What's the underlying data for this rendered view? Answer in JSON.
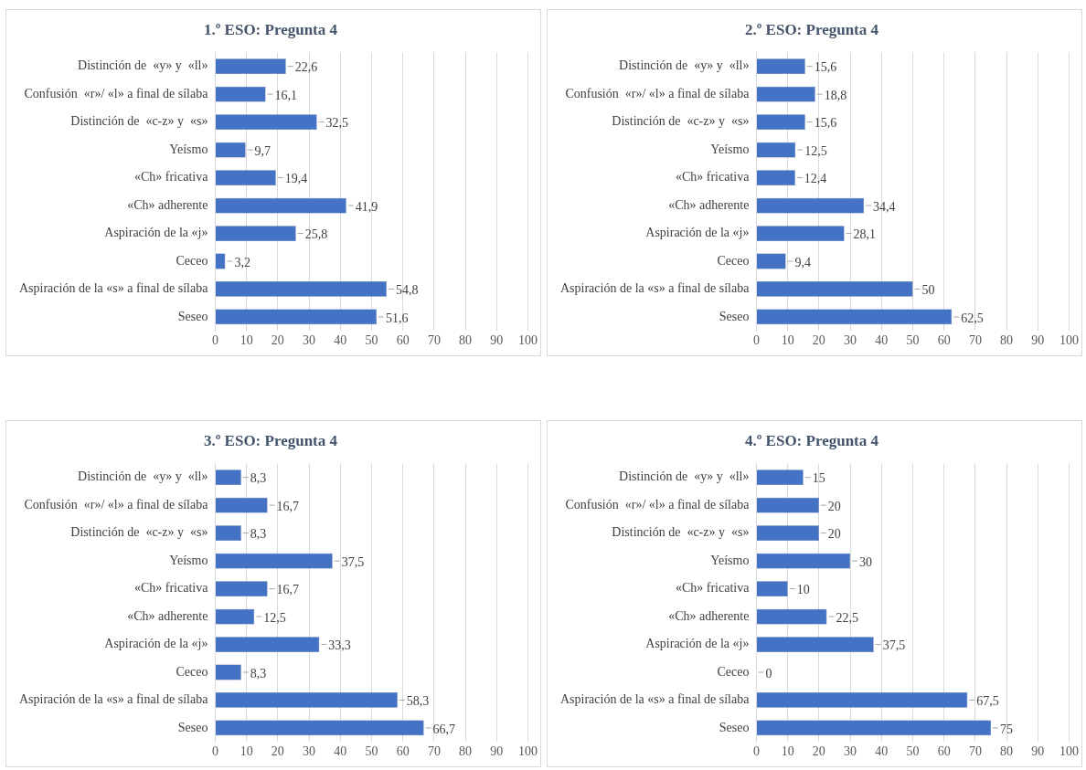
{
  "chart_data": [
    {
      "type": "bar",
      "orientation": "horizontal",
      "title": "1.º ESO: Pregunta 4",
      "categories": [
        "Distinción de  «y» y  «ll»",
        "Confusión  «r»/ «l» a final de sílaba",
        "Distinción de  «c-z» y  «s»",
        "Yeísmo",
        "«Ch» fricativa",
        "«Ch» adherente",
        "Aspiración de la «j»",
        "Ceceo",
        "Aspiración de la «s» a final de sílaba",
        "Seseo"
      ],
      "values": [
        22.6,
        16.1,
        32.5,
        9.7,
        19.4,
        41.9,
        25.8,
        3.2,
        54.8,
        51.6
      ],
      "value_labels": [
        "22,6",
        "16,1",
        "32,5",
        "9,7",
        "19,4",
        "41,9",
        "25,8",
        "3,2",
        "54,8",
        "51,6"
      ],
      "color": "#4472c4",
      "xlim": [
        0,
        100
      ],
      "xticks": [
        0,
        10,
        20,
        30,
        40,
        50,
        60,
        70,
        80,
        90,
        100
      ],
      "grid": "x",
      "legend": false
    },
    {
      "type": "bar",
      "orientation": "horizontal",
      "title": "2.º ESO: Pregunta 4",
      "categories": [
        "Distinción de  «y» y  «ll»",
        "Confusión  «r»/ «l» a final de sílaba",
        "Distinción de  «c-z» y  «s»",
        "Yeísmo",
        "«Ch» fricativa",
        "«Ch» adherente",
        "Aspiración de la «j»",
        "Ceceo",
        "Aspiración de la «s» a final de sílaba",
        "Seseo"
      ],
      "values": [
        15.6,
        18.8,
        15.6,
        12.5,
        12.4,
        34.4,
        28.1,
        9.4,
        50,
        62.5
      ],
      "value_labels": [
        "15,6",
        "18,8",
        "15,6",
        "12,5",
        "12,4",
        "34,4",
        "28,1",
        "9,4",
        "50",
        "62,5"
      ],
      "color": "#4472c4",
      "xlim": [
        0,
        100
      ],
      "xticks": [
        0,
        10,
        20,
        30,
        40,
        50,
        60,
        70,
        80,
        90,
        100
      ],
      "grid": "x",
      "legend": false
    },
    {
      "type": "bar",
      "orientation": "horizontal",
      "title": "3.º ESO: Pregunta 4",
      "categories": [
        "Distinción de  «y» y  «ll»",
        "Confusión  «r»/ «l» a final de sílaba",
        "Distinción de  «c-z» y  «s»",
        "Yeísmo",
        "«Ch» fricativa",
        "«Ch» adherente",
        "Aspiración de la «j»",
        "Ceceo",
        "Aspiración de la «s» a final de sílaba",
        "Seseo"
      ],
      "values": [
        8.3,
        16.7,
        8.3,
        37.5,
        16.7,
        12.5,
        33.3,
        8.3,
        58.3,
        66.7
      ],
      "value_labels": [
        "8,3",
        "16,7",
        "8,3",
        "37,5",
        "16,7",
        "12,5",
        "33,3",
        "8,3",
        "58,3",
        "66,7"
      ],
      "color": "#4472c4",
      "xlim": [
        0,
        100
      ],
      "xticks": [
        0,
        10,
        20,
        30,
        40,
        50,
        60,
        70,
        80,
        90,
        100
      ],
      "grid": "x",
      "legend": false
    },
    {
      "type": "bar",
      "orientation": "horizontal",
      "title": "4.º ESO: Pregunta 4",
      "categories": [
        "Distinción de  «y» y  «ll»",
        "Confusión  «r»/ «l» a final de sílaba",
        "Distinción de  «c-z» y  «s»",
        "Yeísmo",
        "«Ch» fricativa",
        "«Ch» adherente",
        "Aspiración de la «j»",
        "Ceceo",
        "Aspiración de la «s» a final de sílaba",
        "Seseo"
      ],
      "values": [
        15,
        20,
        20,
        30,
        10,
        22.5,
        37.5,
        0,
        67.5,
        75
      ],
      "value_labels": [
        "15",
        "20",
        "20",
        "30",
        "10",
        "22,5",
        "37,5",
        "0",
        "67,5",
        "75"
      ],
      "color": "#4472c4",
      "xlim": [
        0,
        100
      ],
      "xticks": [
        0,
        10,
        20,
        30,
        40,
        50,
        60,
        70,
        80,
        90,
        100
      ],
      "grid": "x",
      "legend": false
    }
  ]
}
